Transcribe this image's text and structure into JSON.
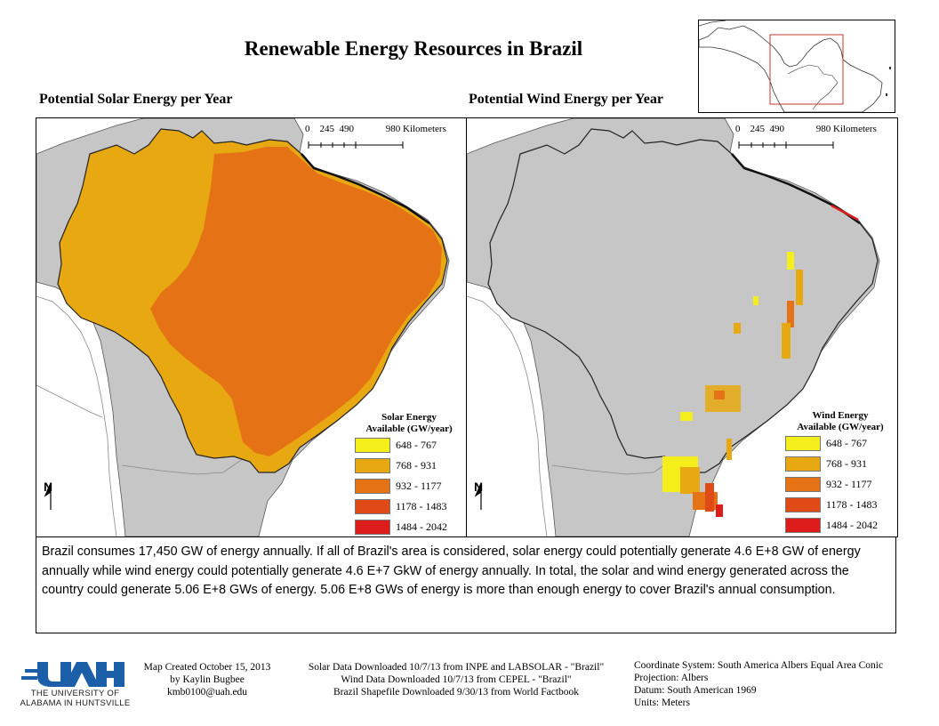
{
  "title": "Renewable Energy Resources in Brazil",
  "solar_panel": {
    "title": "Potential Solar Energy per Year",
    "legend_title_line1": "Solar Energy",
    "legend_title_line2": "Available (GW/year)"
  },
  "wind_panel": {
    "title": "Potential Wind Energy per Year",
    "legend_title_line1": "Wind Energy",
    "legend_title_line2": "Available (GW/year)"
  },
  "legend_classes": [
    {
      "label": "648 - 767",
      "color": "#f4ee1a"
    },
    {
      "label": "768 - 931",
      "color": "#e8a811"
    },
    {
      "label": "932 - 1177",
      "color": "#e57214"
    },
    {
      "label": "1178 - 1483",
      "color": "#e04a17"
    },
    {
      "label": "1484 - 2042",
      "color": "#dd1c1c"
    }
  ],
  "scale_bar": {
    "ticks": [
      "0",
      "245",
      "490",
      "980"
    ],
    "unit": "Kilometers"
  },
  "north_arrow": {
    "label": "N",
    "icon": "north-arrow-icon"
  },
  "description": "Brazil consumes 17,450 GW of energy annually. If all of Brazil's area is considered, solar energy could potentially generate 4.6 E+8 GW of energy annually while wind energy could potentially generate 4.6 E+7 GkW of energy annually. In total, the solar and wind energy generated across the country could generate 5.06 E+8 GWs of energy. 5.06 E+8 GWs of energy is more than enough energy to cover Brazil's annual consumption.",
  "logo": {
    "line1": "THE UNIVERSITY OF",
    "line2": "ALABAMA IN HUNTSVILLE",
    "color": "#1b5fa8"
  },
  "credits_author": [
    "Map Created October 15, 2013",
    "by Kaylin Bugbee",
    "kmb0100@uah.edu"
  ],
  "credits_data": [
    "Solar Data Downloaded 10/7/13 from INPE and LABSOLAR - \"Brazil\"",
    "Wind Data Downloaded 10/7/13 from CEPEL - \"Brazil\"",
    "Brazil Shapefile Downloaded 9/30/13 from World Factbook"
  ],
  "credits_projection": [
    "Coordinate System: South America Albers Equal Area Conic",
    "Projection: Albers",
    "Datum: South American 1969",
    "Units: Meters"
  ],
  "colors": {
    "land_gray": "#c6c6c6",
    "border": "#333333"
  }
}
